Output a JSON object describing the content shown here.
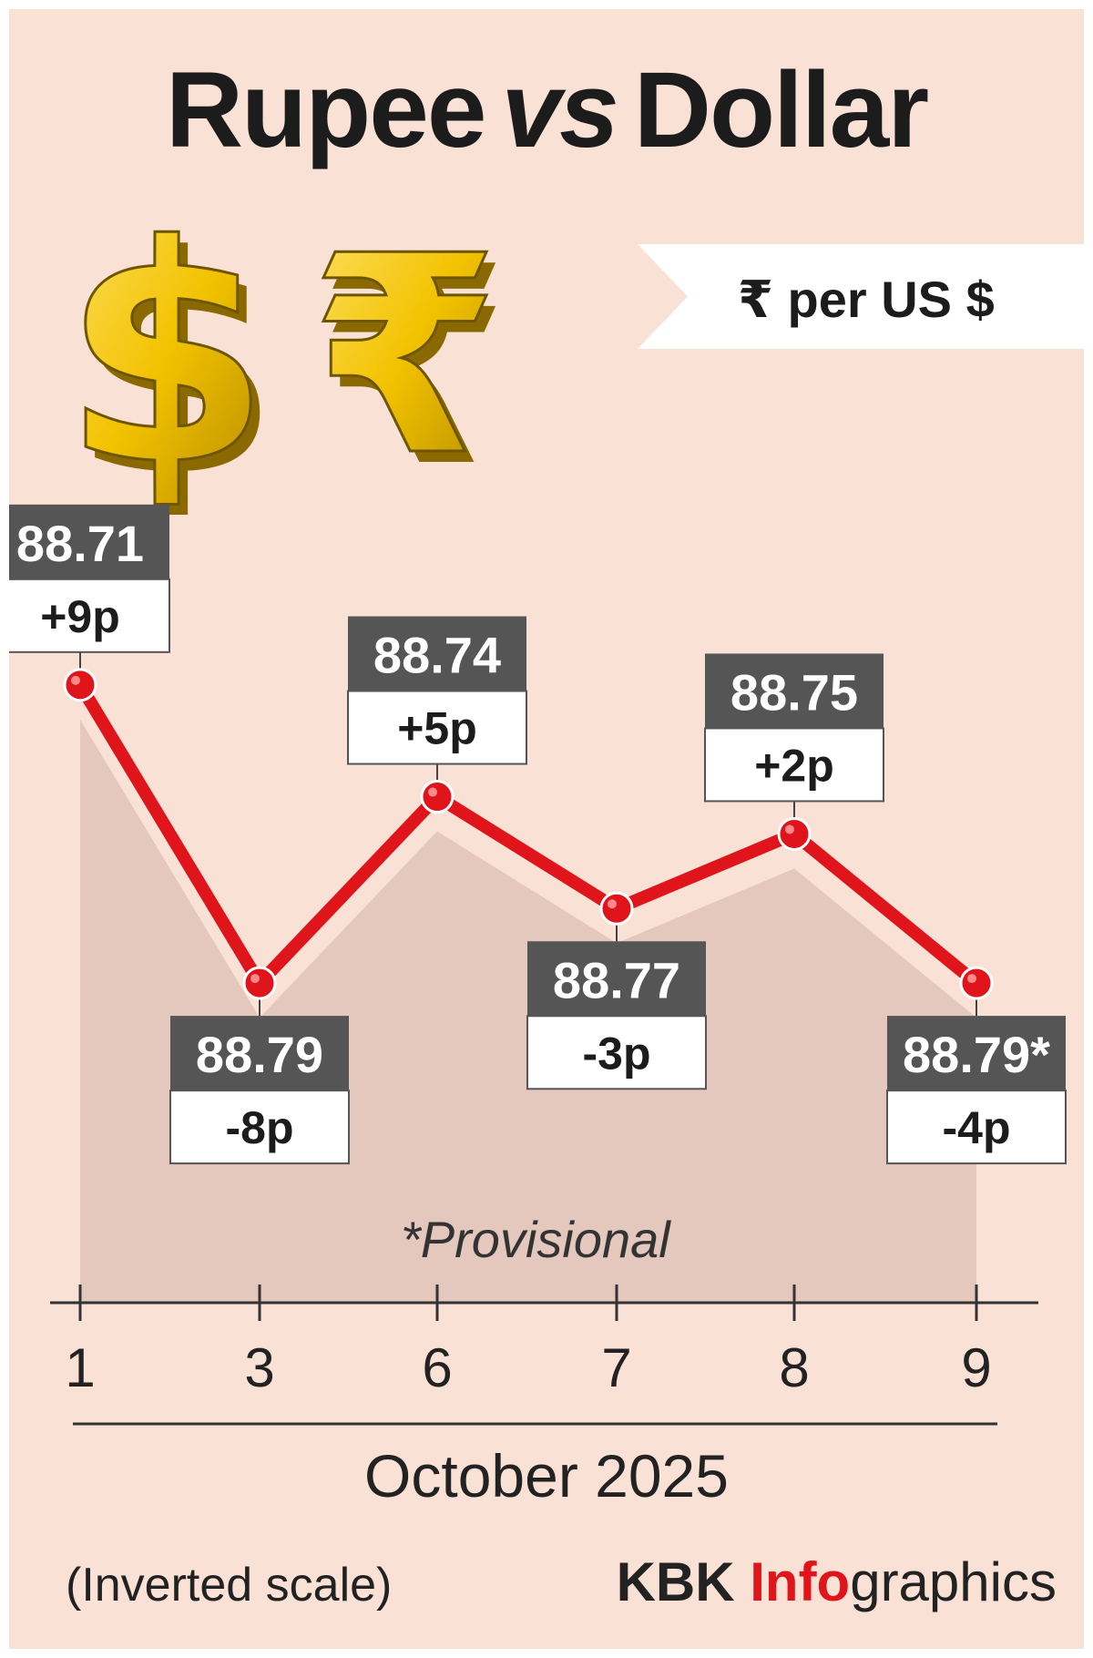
{
  "title": {
    "word1": "Rupee",
    "word2": "vs",
    "word3": "Dollar"
  },
  "unit_label": "₹ per US $",
  "footnote": "*Provisional",
  "scale_note": "(Inverted scale)",
  "credit": {
    "part1": "KBK",
    "part2": "Info",
    "part3": "graphics"
  },
  "icons": [
    "dollar-symbol-icon",
    "rupee-symbol-icon"
  ],
  "colors": {
    "line": "#e0151b",
    "background": "#f9e1d6",
    "label_box": "#555555",
    "accent": "#e0151b"
  },
  "chart_data": {
    "type": "line",
    "title": "Rupee vs Dollar",
    "ylabel": "₹ per US $",
    "xlabel": "October 2025",
    "y_inverted": true,
    "ylim": [
      88.69,
      88.8
    ],
    "categories": [
      "1",
      "3",
      "6",
      "7",
      "8",
      "9"
    ],
    "values": [
      88.71,
      88.79,
      88.74,
      88.77,
      88.75,
      88.79
    ],
    "value_labels": [
      "88.71",
      "88.79",
      "88.74",
      "88.77",
      "88.75",
      "88.79*"
    ],
    "change_labels": [
      "+9p",
      "-8p",
      "+5p",
      "-3p",
      "+2p",
      "-4p"
    ],
    "label_position": [
      "above",
      "below",
      "above",
      "below",
      "above",
      "below"
    ],
    "grid": false
  }
}
